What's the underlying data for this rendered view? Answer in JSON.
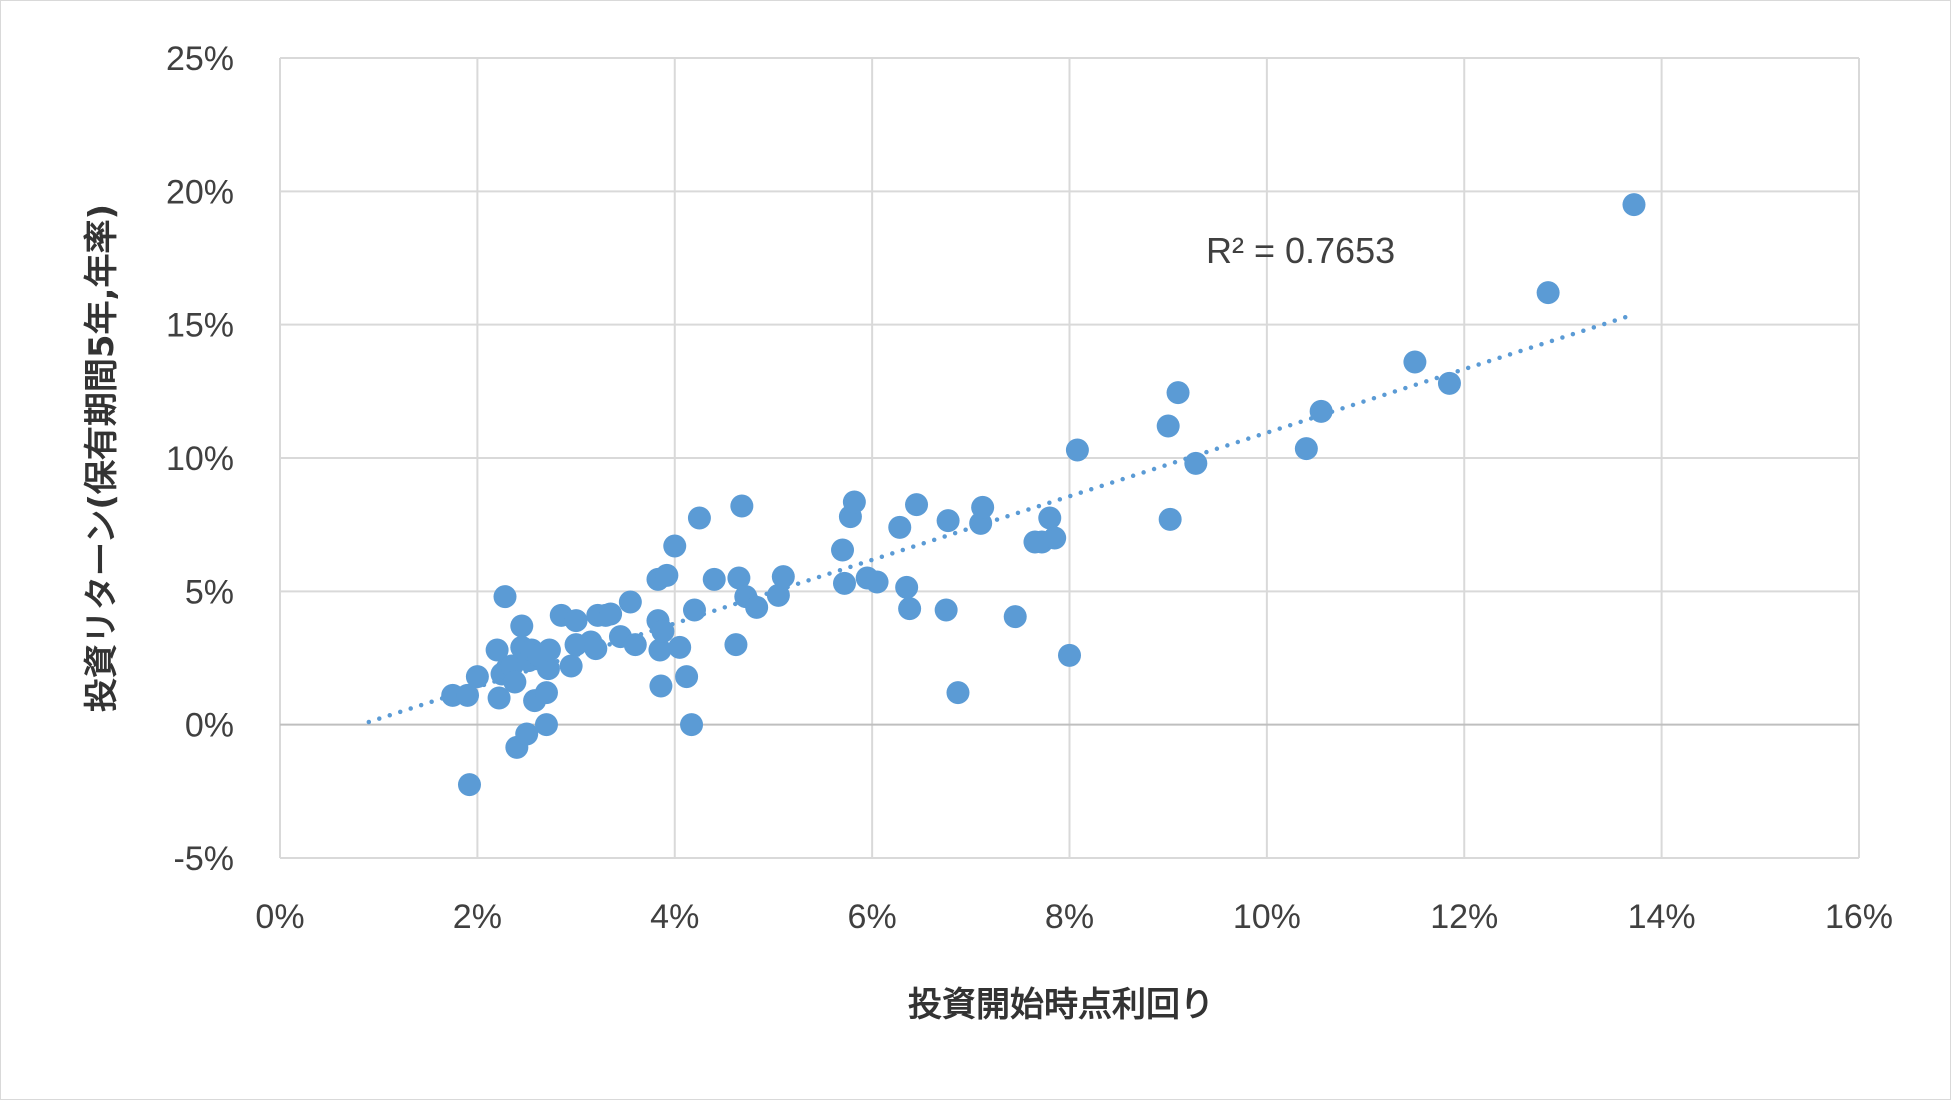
{
  "chart_data": {
    "type": "scatter",
    "title": "",
    "xlabel": "投資開始時点利回り",
    "ylabel": "投資リターン(保有期間5年,年率)",
    "xlim": [
      0,
      16
    ],
    "ylim": [
      -5,
      25
    ],
    "x_ticks": [
      0,
      2,
      4,
      6,
      8,
      10,
      12,
      14,
      16
    ],
    "y_ticks": [
      -5,
      0,
      5,
      10,
      15,
      20,
      25
    ],
    "x_tick_labels": [
      "0%",
      "2%",
      "4%",
      "6%",
      "8%",
      "10%",
      "12%",
      "14%",
      "16%"
    ],
    "y_tick_labels": [
      "-5%",
      "0%",
      "5%",
      "10%",
      "15%",
      "20%",
      "25%"
    ],
    "grid": true,
    "marker_color": "#5b9bd5",
    "trendline": {
      "type": "linear",
      "style": "dotted",
      "color": "#5b9bd5",
      "x_start": 0.9,
      "x_end": 13.65,
      "y_start": 0.1,
      "y_end": 15.3,
      "r_squared_label": "R² = 0.7653"
    },
    "series": [
      {
        "points": [
          [
            1.75,
            1.1
          ],
          [
            1.9,
            1.1
          ],
          [
            1.92,
            -2.25
          ],
          [
            2.0,
            1.8
          ],
          [
            2.2,
            2.8
          ],
          [
            2.22,
            1.0
          ],
          [
            2.25,
            1.9
          ],
          [
            2.28,
            4.8
          ],
          [
            2.3,
            2.1
          ],
          [
            2.35,
            2.2
          ],
          [
            2.38,
            1.6
          ],
          [
            2.4,
            -0.85
          ],
          [
            2.45,
            3.7
          ],
          [
            2.45,
            2.9
          ],
          [
            2.5,
            -0.35
          ],
          [
            2.52,
            2.4
          ],
          [
            2.55,
            2.8
          ],
          [
            2.58,
            0.9
          ],
          [
            2.62,
            2.6
          ],
          [
            2.7,
            0.0
          ],
          [
            2.7,
            1.2
          ],
          [
            2.72,
            2.1
          ],
          [
            2.73,
            2.8
          ],
          [
            2.85,
            4.1
          ],
          [
            2.95,
            2.2
          ],
          [
            3.0,
            3.0
          ],
          [
            3.0,
            3.9
          ],
          [
            3.15,
            3.1
          ],
          [
            3.2,
            2.85
          ],
          [
            3.22,
            4.1
          ],
          [
            3.3,
            4.1
          ],
          [
            3.35,
            4.15
          ],
          [
            3.45,
            3.3
          ],
          [
            3.55,
            4.6
          ],
          [
            3.6,
            3.0
          ],
          [
            3.83,
            3.9
          ],
          [
            3.83,
            5.45
          ],
          [
            3.85,
            2.8
          ],
          [
            3.86,
            1.45
          ],
          [
            3.88,
            3.5
          ],
          [
            3.92,
            5.6
          ],
          [
            4.0,
            6.7
          ],
          [
            4.05,
            2.9
          ],
          [
            4.12,
            1.8
          ],
          [
            4.17,
            0.0
          ],
          [
            4.2,
            4.3
          ],
          [
            4.25,
            7.75
          ],
          [
            4.4,
            5.45
          ],
          [
            4.62,
            3.0
          ],
          [
            4.65,
            5.5
          ],
          [
            4.68,
            8.2
          ],
          [
            4.72,
            4.8
          ],
          [
            4.83,
            4.4
          ],
          [
            5.05,
            4.85
          ],
          [
            5.1,
            5.55
          ],
          [
            5.7,
            6.55
          ],
          [
            5.72,
            5.3
          ],
          [
            5.78,
            7.8
          ],
          [
            5.82,
            8.35
          ],
          [
            5.95,
            5.5
          ],
          [
            6.05,
            5.35
          ],
          [
            6.28,
            7.4
          ],
          [
            6.35,
            5.15
          ],
          [
            6.38,
            4.35
          ],
          [
            6.45,
            8.25
          ],
          [
            6.75,
            4.3
          ],
          [
            6.77,
            7.65
          ],
          [
            6.87,
            1.2
          ],
          [
            7.1,
            7.55
          ],
          [
            7.12,
            8.15
          ],
          [
            7.45,
            4.05
          ],
          [
            7.65,
            6.85
          ],
          [
            7.72,
            6.85
          ],
          [
            7.8,
            7.75
          ],
          [
            7.85,
            7.0
          ],
          [
            8.0,
            2.6
          ],
          [
            8.08,
            10.3
          ],
          [
            9.0,
            11.2
          ],
          [
            9.02,
            7.7
          ],
          [
            9.1,
            12.45
          ],
          [
            9.28,
            9.8
          ],
          [
            10.4,
            10.35
          ],
          [
            10.55,
            11.75
          ],
          [
            11.5,
            13.6
          ],
          [
            11.85,
            12.8
          ],
          [
            12.85,
            16.2
          ],
          [
            13.72,
            19.5
          ]
        ]
      }
    ]
  }
}
